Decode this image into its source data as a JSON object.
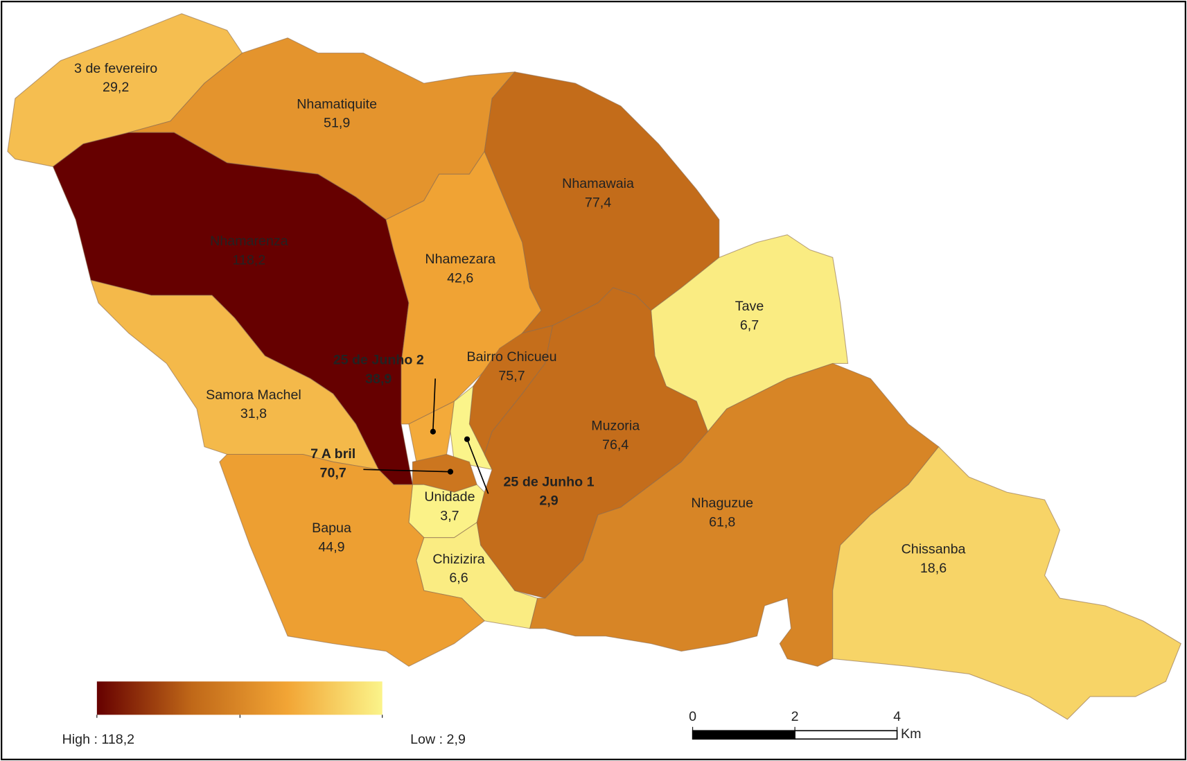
{
  "map": {
    "regions": [
      {
        "name": "3 de fevereiro",
        "value": 29.2,
        "value_label": "29,2"
      },
      {
        "name": "Nhamatiquite",
        "value": 51.9,
        "value_label": "51,9"
      },
      {
        "name": "Nhamarenza",
        "value": 118.2,
        "value_label": "118,2"
      },
      {
        "name": "Nhamezara",
        "value": 42.6,
        "value_label": "42,6"
      },
      {
        "name": "Nhamawaia",
        "value": 77.4,
        "value_label": "77,4"
      },
      {
        "name": "Tave",
        "value": 6.7,
        "value_label": "6,7"
      },
      {
        "name": "Samora Machel",
        "value": 31.8,
        "value_label": "31,8"
      },
      {
        "name": "Bairro Chicueu",
        "value": 75.7,
        "value_label": "75,7"
      },
      {
        "name": "25 de Junho 2",
        "value": 38.9,
        "value_label": "38,9"
      },
      {
        "name": "25 de Junho 1",
        "value": 2.9,
        "value_label": "2,9"
      },
      {
        "name": "7 A bril",
        "value": 70.7,
        "value_label": "70,7"
      },
      {
        "name": "Unidade",
        "value": 3.7,
        "value_label": "3,7"
      },
      {
        "name": "Chizizira",
        "value": 6.6,
        "value_label": "6,6"
      },
      {
        "name": "Muzoria",
        "value": 76.4,
        "value_label": "76,4"
      },
      {
        "name": "Bapua",
        "value": 44.9,
        "value_label": "44,9"
      },
      {
        "name": "Nhaguzue",
        "value": 61.8,
        "value_label": "61,8"
      },
      {
        "name": "Chissanba",
        "value": 18.6,
        "value_label": "18,6"
      }
    ],
    "legend": {
      "high_label": "High : 118,2",
      "low_label": "Low : 2,9",
      "colors": [
        "#660000",
        "#c06818",
        "#f2a535",
        "#fbf48a"
      ]
    },
    "scale_bar": {
      "ticks": [
        0,
        2,
        4
      ],
      "unit": "Km"
    }
  }
}
